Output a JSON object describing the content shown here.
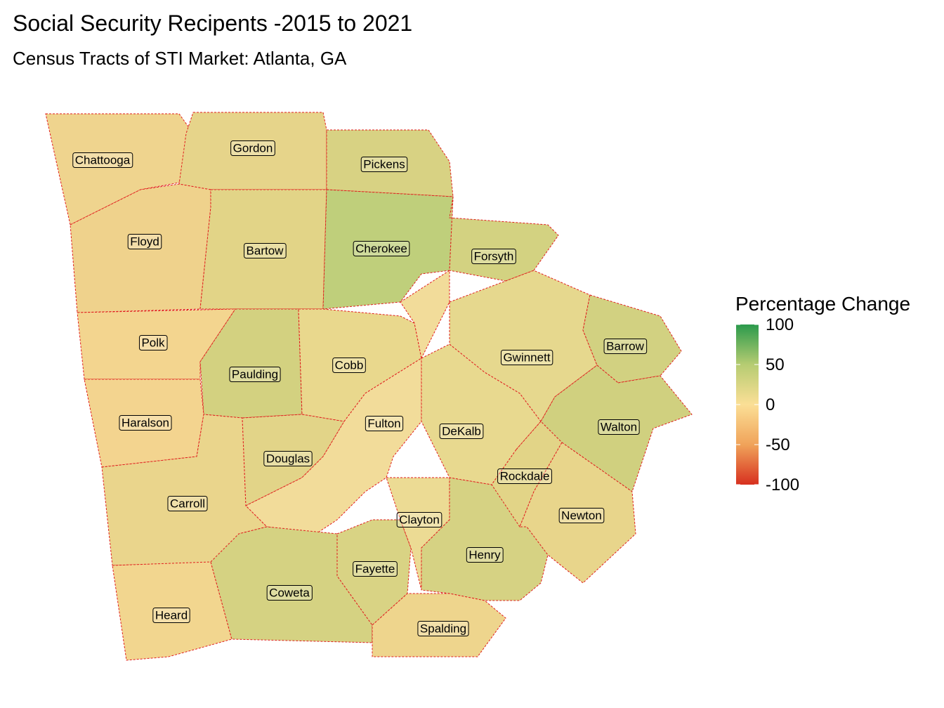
{
  "header": {
    "title": "Social Security Recipents -2015 to 2021",
    "subtitle": "Census Tracts of STI Market: Atlanta, GA"
  },
  "counties": [
    "Chattooga",
    "Gordon",
    "Pickens",
    "Floyd",
    "Bartow",
    "Cherokee",
    "Forsyth",
    "Polk",
    "Paulding",
    "Cobb",
    "Gwinnett",
    "Barrow",
    "Haralson",
    "Fulton",
    "DeKalb",
    "Walton",
    "Douglas",
    "Rockdale",
    "Carroll",
    "Newton",
    "Clayton",
    "Henry",
    "Fayette",
    "Coweta",
    "Heard",
    "Spalding"
  ],
  "legend": {
    "title": "Percentage Change",
    "lim": [
      -100,
      100
    ],
    "ticks": [
      100,
      50,
      0,
      -50,
      -100
    ],
    "colors": [
      "#d7301f",
      "#f0a35a",
      "#fbdf96",
      "#b6cc72",
      "#2b9a4c"
    ]
  }
}
